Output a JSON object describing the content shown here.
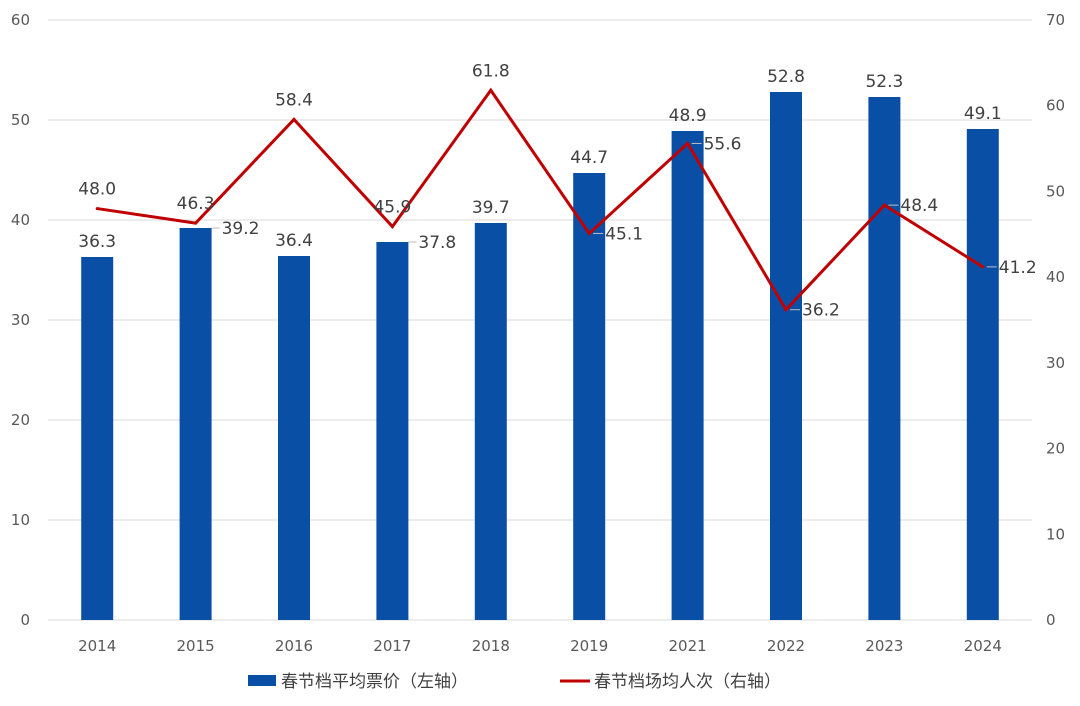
{
  "chart_data": {
    "type": "bar+line",
    "categories": [
      "2014",
      "2015",
      "2016",
      "2017",
      "2018",
      "2019",
      "2021",
      "2022",
      "2023",
      "2024"
    ],
    "series": [
      {
        "name": "春节档平均票价（左轴）",
        "type": "bar",
        "axis": "left",
        "color": "#0a4fa6",
        "values": [
          36.3,
          39.2,
          36.4,
          37.8,
          39.7,
          44.7,
          48.9,
          52.8,
          52.3,
          49.1
        ]
      },
      {
        "name": "春节档场均人次（右轴）",
        "type": "line",
        "axis": "right",
        "color": "#c00000",
        "values": [
          48.0,
          46.3,
          58.4,
          45.9,
          61.8,
          45.1,
          55.6,
          36.2,
          48.4,
          41.2
        ]
      }
    ],
    "y_left": {
      "min": 0,
      "max": 60,
      "step": 10
    },
    "y_right": {
      "min": 0,
      "max": 70,
      "step": 10
    },
    "grid": true,
    "legend_position": "bottom"
  }
}
